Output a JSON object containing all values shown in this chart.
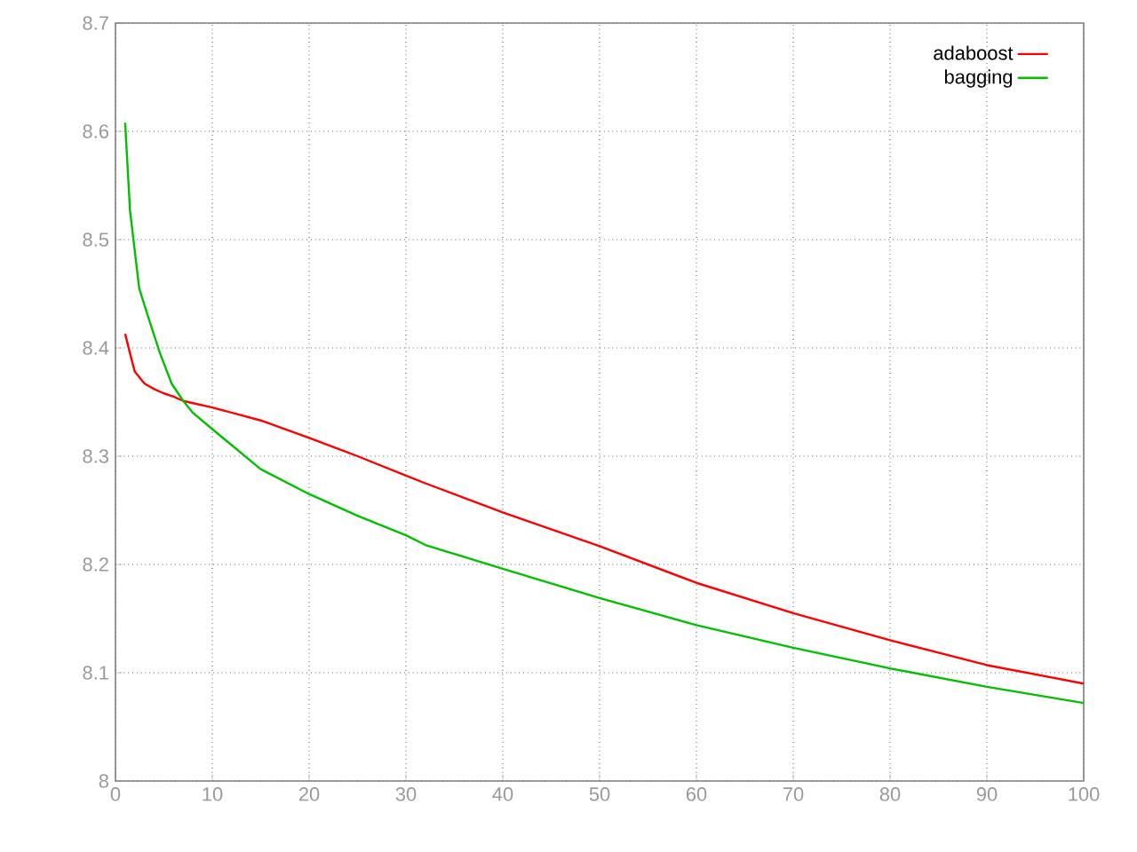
{
  "chart_data": {
    "type": "line",
    "x": [
      1,
      1.5,
      2,
      3,
      4,
      5,
      6,
      7,
      8,
      10,
      15,
      20,
      25,
      30,
      32,
      40,
      50,
      60,
      70,
      80,
      90,
      100
    ],
    "series": [
      {
        "name": "adaboost",
        "color": "#ff0000",
        "values": [
          8.413,
          8.395,
          8.378,
          8.367,
          8.362,
          8.358,
          8.355,
          8.351,
          8.349,
          8.345,
          8.333,
          8.317,
          8.3,
          8.282,
          8.275,
          8.248,
          8.217,
          8.183,
          8.155,
          8.13,
          8.107,
          8.09
        ]
      },
      {
        "name": "bagging",
        "color": "#00c000",
        "x": [
          1,
          1.5,
          2.45,
          3.4,
          4.6,
          5.8,
          7,
          8,
          10,
          15,
          20,
          25,
          30,
          32,
          40,
          50,
          60,
          70,
          80,
          90,
          100
        ],
        "values": [
          8.608,
          8.527,
          8.455,
          8.428,
          8.395,
          8.367,
          8.351,
          8.34,
          8.325,
          8.288,
          8.265,
          8.245,
          8.227,
          8.218,
          8.196,
          8.169,
          8.144,
          8.123,
          8.104,
          8.087,
          8.072
        ]
      }
    ],
    "xlim": [
      0,
      100
    ],
    "ylim": [
      8,
      8.7
    ],
    "xticks": [
      0,
      10,
      20,
      30,
      40,
      50,
      60,
      70,
      80,
      90,
      100
    ],
    "yticks": [
      8,
      8.1,
      8.2,
      8.3,
      8.4,
      8.5,
      8.6,
      8.7
    ],
    "grid": true,
    "legend": "top right",
    "line_style": "solid"
  }
}
